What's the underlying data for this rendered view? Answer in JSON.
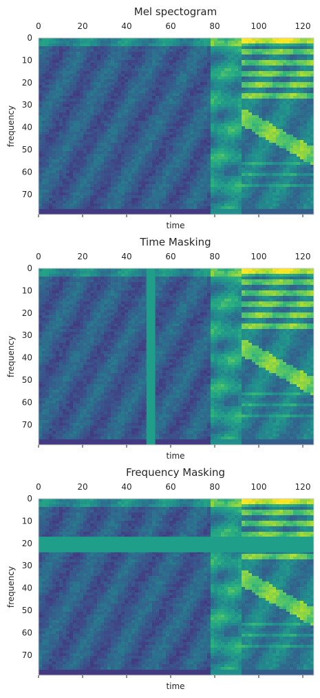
{
  "chart_data": [
    {
      "type": "heatmap",
      "title": "Mel spectogram",
      "xlabel": "time",
      "ylabel": "frequency",
      "x_ticks": [
        0,
        20,
        40,
        60,
        80,
        100,
        120
      ],
      "y_ticks": [
        0,
        10,
        20,
        30,
        40,
        50,
        60,
        70
      ],
      "xlim": [
        0,
        125
      ],
      "ylim": [
        79,
        0
      ],
      "colormap": "viridis",
      "grid": false,
      "mask": null
    },
    {
      "type": "heatmap",
      "title": "Time Masking",
      "xlabel": "time",
      "ylabel": "frequency",
      "x_ticks": [
        0,
        20,
        40,
        60,
        80,
        100,
        120
      ],
      "y_ticks": [
        0,
        10,
        20,
        30,
        40,
        50,
        60,
        70
      ],
      "xlim": [
        0,
        125
      ],
      "ylim": [
        79,
        0
      ],
      "colormap": "viridis",
      "grid": false,
      "mask": {
        "axis": "time",
        "start": 49,
        "end": 53,
        "color": "#1f9e89"
      }
    },
    {
      "type": "heatmap",
      "title": "Frequency Masking",
      "xlabel": "time",
      "ylabel": "frequency",
      "x_ticks": [
        0,
        20,
        40,
        60,
        80,
        100,
        120
      ],
      "y_ticks": [
        0,
        10,
        20,
        30,
        40,
        50,
        60,
        70
      ],
      "xlim": [
        0,
        125
      ],
      "ylim": [
        79,
        0
      ],
      "colormap": "viridis",
      "grid": false,
      "mask": {
        "axis": "frequency",
        "start": 17,
        "end": 24,
        "color": "#1f9e89"
      }
    }
  ]
}
